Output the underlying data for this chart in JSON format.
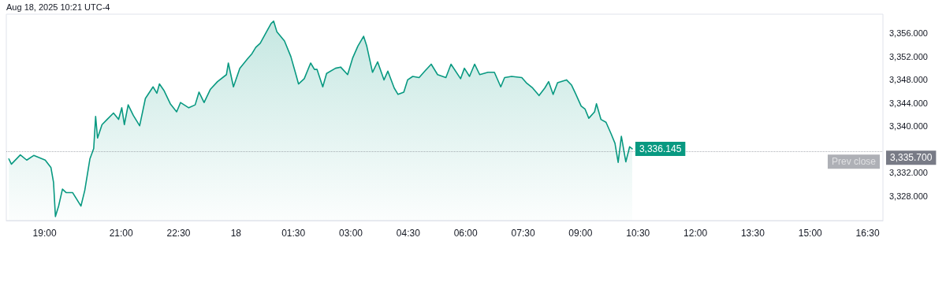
{
  "chart_data": {
    "type": "area",
    "annotations": [
      "Aug 18, 2025 10:21 UTC-4",
      {
        "text": "3,336.145",
        "x": "2025-08-18T10:21",
        "y": 3336.145
      },
      {
        "text": "3,335.700",
        "x": "2025-08-18T16:54",
        "y": 3335.7
      }
    ],
    "x": [
      "2025-08-17T18:04",
      "2025-08-17T18:08",
      "2025-08-17T18:22",
      "2025-08-17T18:32",
      "2025-08-17T18:43",
      "2025-08-17T19:01",
      "2025-08-17T19:10",
      "2025-08-17T19:14",
      "2025-08-17T19:17",
      "2025-08-17T19:22",
      "2025-08-17T19:28",
      "2025-08-17T19:34",
      "2025-08-17T19:44",
      "2025-08-17T19:57",
      "2025-08-17T20:03",
      "2025-08-17T20:11",
      "2025-08-17T20:17",
      "2025-08-17T20:20",
      "2025-08-17T20:23",
      "2025-08-17T20:30",
      "2025-08-17T20:38",
      "2025-08-17T20:48",
      "2025-08-17T20:56",
      "2025-08-17T21:01",
      "2025-08-17T21:05",
      "2025-08-17T21:11",
      "2025-08-17T21:19",
      "2025-08-17T21:29",
      "2025-08-17T21:38",
      "2025-08-17T21:50",
      "2025-08-17T21:56",
      "2025-08-17T22:00",
      "2025-08-17T22:07",
      "2025-08-17T22:17",
      "2025-08-17T22:27",
      "2025-08-17T22:33",
      "2025-08-17T22:46",
      "2025-08-17T22:56",
      "2025-08-17T23:02",
      "2025-08-17T23:10",
      "2025-08-17T23:20",
      "2025-08-17T23:31",
      "2025-08-17T23:45",
      "2025-08-17T23:48",
      "2025-08-17T23:56",
      "2025-08-18T00:06",
      "2025-08-18T00:18",
      "2025-08-18T00:25",
      "2025-08-18T00:31",
      "2025-08-18T00:38",
      "2025-08-18T00:49",
      "2025-08-18T00:55",
      "2025-08-18T00:59",
      "2025-08-18T01:04",
      "2025-08-18T01:16",
      "2025-08-18T01:26",
      "2025-08-18T01:34",
      "2025-08-18T01:38",
      "2025-08-18T01:47",
      "2025-08-18T01:57",
      "2025-08-18T02:03",
      "2025-08-18T02:07",
      "2025-08-18T02:16",
      "2025-08-18T02:22",
      "2025-08-18T02:36",
      "2025-08-18T02:44",
      "2025-08-18T02:55",
      "2025-08-18T03:03",
      "2025-08-18T03:11",
      "2025-08-18T03:20",
      "2025-08-18T03:25",
      "2025-08-18T03:34",
      "2025-08-18T03:42",
      "2025-08-18T03:52",
      "2025-08-18T03:58",
      "2025-08-18T04:08",
      "2025-08-18T04:14",
      "2025-08-18T04:23",
      "2025-08-18T04:29",
      "2025-08-18T04:37",
      "2025-08-18T04:47",
      "2025-08-18T04:56",
      "2025-08-18T05:06",
      "2025-08-18T05:16",
      "2025-08-18T05:29",
      "2025-08-18T05:37",
      "2025-08-18T05:52",
      "2025-08-18T05:58",
      "2025-08-18T06:06",
      "2025-08-18T06:14",
      "2025-08-18T06:22",
      "2025-08-18T06:35",
      "2025-08-18T06:45",
      "2025-08-18T06:55",
      "2025-08-18T07:01",
      "2025-08-18T07:12",
      "2025-08-18T07:28",
      "2025-08-18T07:35",
      "2025-08-18T07:45",
      "2025-08-18T07:55",
      "2025-08-18T08:04",
      "2025-08-18T08:10",
      "2025-08-18T08:17",
      "2025-08-18T08:24",
      "2025-08-18T08:38",
      "2025-08-18T08:46",
      "2025-08-18T08:52",
      "2025-08-18T09:01",
      "2025-08-18T09:07",
      "2025-08-18T09:13",
      "2025-08-18T09:22",
      "2025-08-18T09:25",
      "2025-08-18T09:32",
      "2025-08-18T09:40",
      "2025-08-18T09:48",
      "2025-08-18T09:54",
      "2025-08-18T09:59",
      "2025-08-18T10:04",
      "2025-08-18T10:11",
      "2025-08-18T10:17",
      "2025-08-18T10:21"
    ],
    "series": [
      {
        "color": "#089981",
        "values": [
          3334.4,
          3333.5,
          3335.1,
          3334.2,
          3335.0,
          3334.2,
          3332.9,
          3330.4,
          3324.5,
          3326.3,
          3329.2,
          3328.6,
          3328.6,
          3326.3,
          3329.0,
          3334.4,
          3336.2,
          3341.7,
          3338.0,
          3340.3,
          3341.2,
          3342.3,
          3341.2,
          3343.2,
          3340.3,
          3343.7,
          3341.9,
          3340.1,
          3344.8,
          3346.8,
          3345.7,
          3347.3,
          3346.2,
          3343.9,
          3342.5,
          3344.1,
          3343.2,
          3343.7,
          3345.9,
          3344.1,
          3346.4,
          3347.7,
          3348.9,
          3350.9,
          3346.8,
          3350.0,
          3351.6,
          3352.5,
          3353.6,
          3354.3,
          3356.5,
          3357.7,
          3358.1,
          3356.3,
          3354.7,
          3352.0,
          3348.9,
          3347.3,
          3348.2,
          3350.9,
          3349.8,
          3349.8,
          3346.8,
          3349.1,
          3350.0,
          3350.2,
          3348.9,
          3351.8,
          3353.8,
          3355.5,
          3353.8,
          3349.3,
          3351.1,
          3348.0,
          3349.5,
          3346.6,
          3345.5,
          3345.9,
          3348.0,
          3348.6,
          3348.4,
          3349.5,
          3350.7,
          3348.9,
          3348.4,
          3350.7,
          3348.2,
          3350.0,
          3348.6,
          3350.7,
          3348.9,
          3349.3,
          3349.3,
          3346.8,
          3348.4,
          3348.6,
          3348.4,
          3347.5,
          3346.6,
          3345.3,
          3346.6,
          3347.7,
          3345.5,
          3347.5,
          3348.0,
          3347.1,
          3345.7,
          3343.5,
          3343.0,
          3341.4,
          3342.5,
          3343.9,
          3341.2,
          3340.7,
          3338.7,
          3337.1,
          3333.8,
          3338.3,
          3333.9,
          3336.5,
          3336.145
        ]
      }
    ],
    "xlim": [
      "2025-08-17T18:00",
      "2025-08-18T16:54"
    ],
    "xticks": [
      {
        "value": "2025-08-17T19:00",
        "label": "19:00"
      },
      {
        "value": "2025-08-17T21:00",
        "label": "21:00"
      },
      {
        "value": "2025-08-17T22:30",
        "label": "22:30"
      },
      {
        "value": "2025-08-18T00:00",
        "label": "18"
      },
      {
        "value": "2025-08-18T01:30",
        "label": "01:30"
      },
      {
        "value": "2025-08-18T03:00",
        "label": "03:00"
      },
      {
        "value": "2025-08-18T04:30",
        "label": "04:30"
      },
      {
        "value": "2025-08-18T06:00",
        "label": "06:00"
      },
      {
        "value": "2025-08-18T07:30",
        "label": "07:30"
      },
      {
        "value": "2025-08-18T09:00",
        "label": "09:00"
      },
      {
        "value": "2025-08-18T10:30",
        "label": "10:30"
      },
      {
        "value": "2025-08-18T12:00",
        "label": "12:00"
      },
      {
        "value": "2025-08-18T13:30",
        "label": "13:30"
      },
      {
        "value": "2025-08-18T15:00",
        "label": "15:00"
      },
      {
        "value": "2025-08-18T16:30",
        "label": "16:30"
      }
    ],
    "ylim": [
      3323.8,
      3359.3
    ],
    "yticks": [
      {
        "value": 3328,
        "label": "3,328.000"
      },
      {
        "value": 3332,
        "label": "3,332.000"
      },
      {
        "value": 3340,
        "label": "3,340.000"
      },
      {
        "value": 3344,
        "label": "3,344.000"
      },
      {
        "value": 3348,
        "label": "3,348.000"
      },
      {
        "value": 3352,
        "label": "3,352.000"
      },
      {
        "value": 3356,
        "label": "3,356.000"
      }
    ],
    "ref_lines": [
      {
        "axis": "y",
        "value": 3335.7,
        "label": "Prev close",
        "color": "#787b86",
        "line_style": "dotted"
      }
    ],
    "grid": false,
    "marker": "none",
    "line_style": "solid"
  }
}
